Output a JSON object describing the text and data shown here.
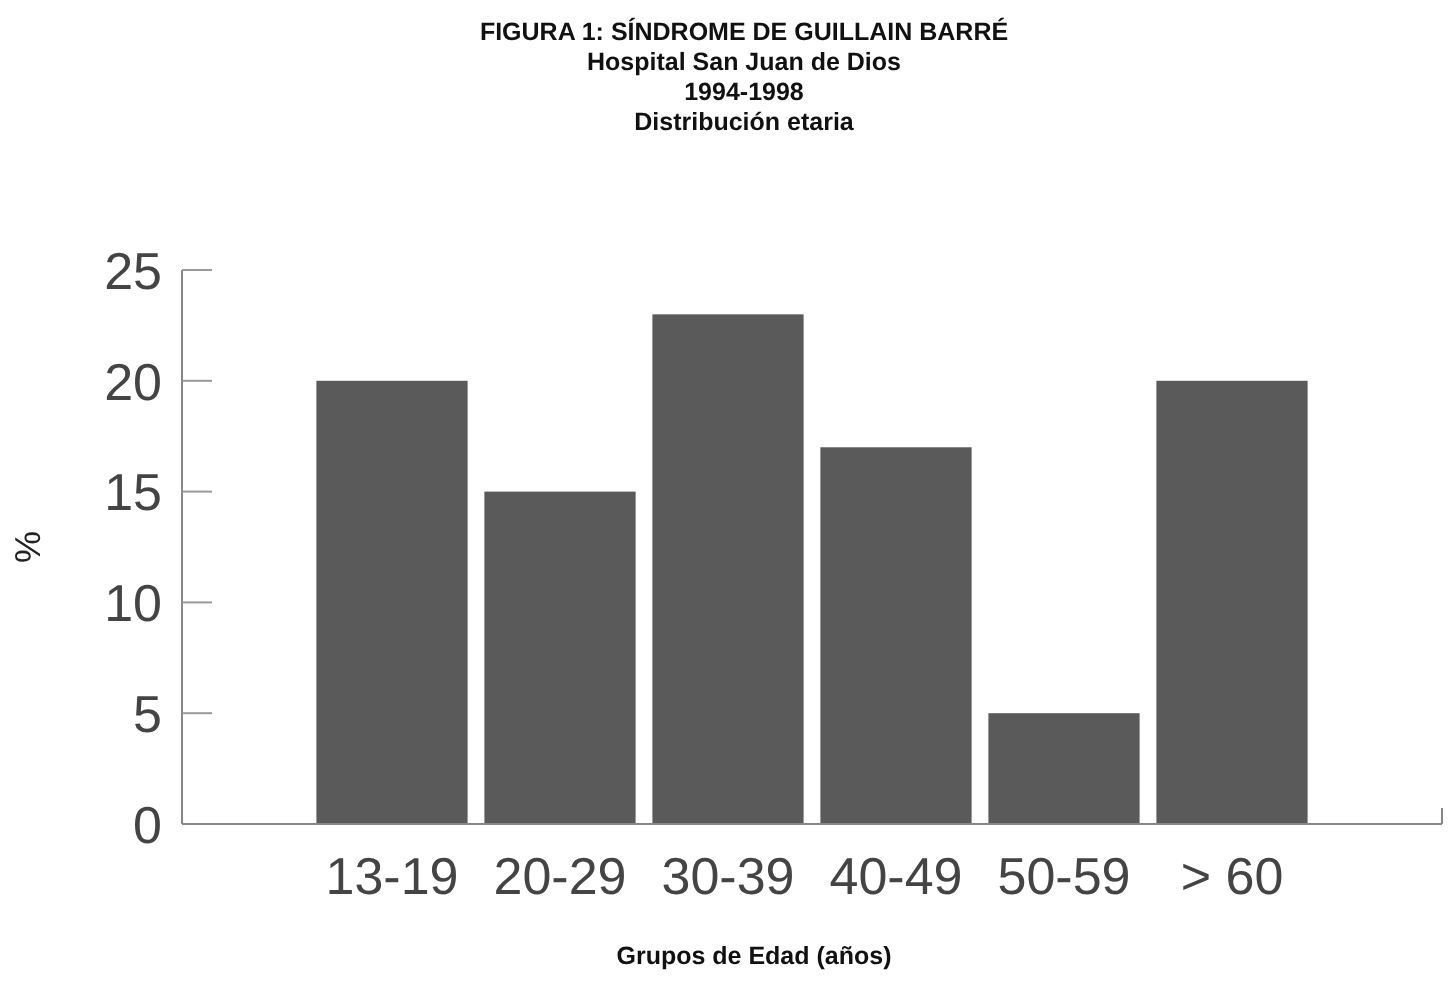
{
  "chart_data": {
    "type": "bar",
    "title": "FIGURA 1: SÍNDROME DE GUILLAIN BARRÉ",
    "subtitle": "Hospital San Juan de Dios\n1994-1998\nDistribución etaria",
    "xlabel": "Grupos de Edad (años)",
    "ylabel": "%",
    "categories": [
      "13-19",
      "20-29",
      "30-39",
      "40-49",
      "50-59",
      "> 60"
    ],
    "values": [
      20,
      15,
      23,
      17,
      5,
      20
    ],
    "color": "#5a5a5a",
    "ylim": [
      0,
      25
    ],
    "yticks": [
      0,
      5,
      10,
      15,
      20,
      25
    ],
    "grid": false
  }
}
